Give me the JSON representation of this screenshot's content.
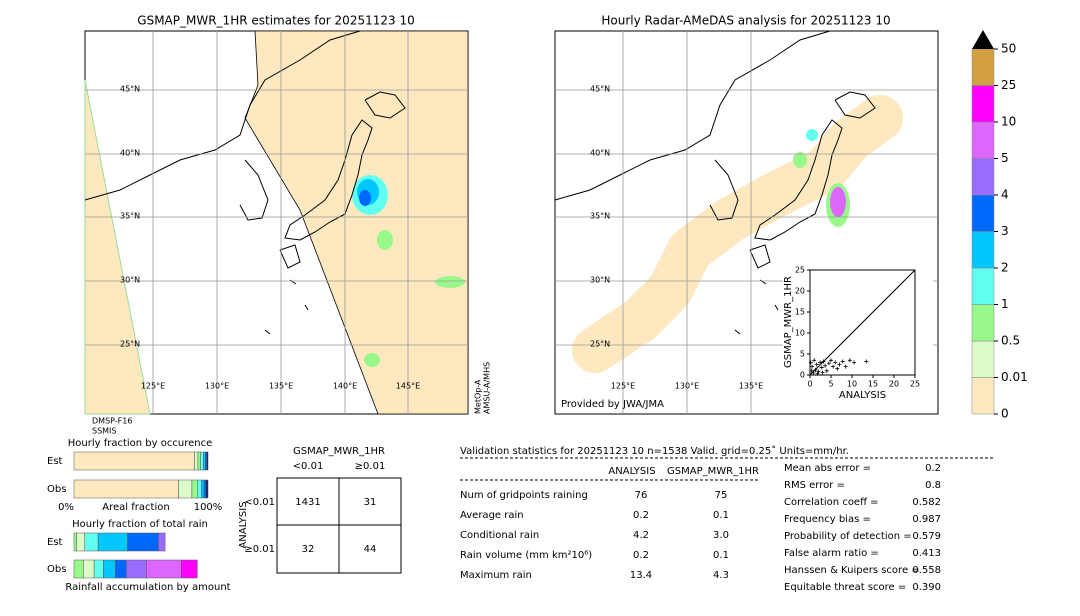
{
  "left_map": {
    "title": "GSMAP_MWR_1HR estimates for 20251123 10",
    "lat_labels": [
      "45°N",
      "40°N",
      "35°N",
      "30°N",
      "25°N"
    ],
    "lon_labels": [
      "125°E",
      "130°E",
      "135°E",
      "140°E",
      "145°E"
    ],
    "sensor_left": [
      "DMSP-F16",
      "SSMIS"
    ],
    "sensor_right": [
      "MetOp-A",
      "AMSU-A/MHS"
    ]
  },
  "right_map": {
    "title": "Hourly Radar-AMeDAS analysis for 20251123 10",
    "lat_labels": [
      "45°N",
      "40°N",
      "35°N",
      "30°N",
      "25°N"
    ],
    "lon_labels": [
      "125°E",
      "130°E",
      "135°E"
    ],
    "credit": "Provided by JWA/JMA"
  },
  "colorbar": {
    "levels": [
      0,
      0.01,
      0.5,
      1,
      2,
      3,
      4,
      5,
      10,
      25,
      50
    ],
    "colors": [
      "#fde8c0",
      "#dcfbc9",
      "#98f98a",
      "#60fff0",
      "#00c8ff",
      "#0068ff",
      "#9a6bff",
      "#dd66ff",
      "#ff00ff",
      "#d2a040"
    ],
    "extend_color": "#000000"
  },
  "scatter": {
    "type": "scatter",
    "xlabel": "ANALYSIS",
    "ylabel": "GSMAP_MWR_1HR",
    "xlim": [
      0,
      25
    ],
    "ylim": [
      0,
      25
    ],
    "xticks": [
      0,
      5,
      10,
      15,
      20,
      25
    ],
    "yticks": [
      0,
      5,
      10,
      15,
      20,
      25
    ],
    "x": [
      0.2,
      0.5,
      0.8,
      1.0,
      1.3,
      1.6,
      2.0,
      2.4,
      2.8,
      3.2,
      3.6,
      4.0,
      4.5,
      5.0,
      5.5,
      6.0,
      6.5,
      7.0,
      7.8,
      8.5,
      9.5,
      10.5,
      13.4,
      0.4,
      1.8,
      3.0
    ],
    "y": [
      3.0,
      2.0,
      0.5,
      3.5,
      1.2,
      2.5,
      0.8,
      3.0,
      1.8,
      3.2,
      2.2,
      1.0,
      2.8,
      3.5,
      2.0,
      3.0,
      1.5,
      2.5,
      3.2,
      2.0,
      3.5,
      3.0,
      3.2,
      1.0,
      0.3,
      0.6
    ],
    "color": "#000000"
  },
  "occurrence": {
    "title": "Hourly fraction by occurence",
    "rows": [
      "Est",
      "Obs"
    ],
    "xlabel": "Areal fraction",
    "xtick_labels": [
      "0%",
      "100%"
    ],
    "colors": [
      "#fde8c0",
      "#dcfbc9",
      "#98f98a",
      "#60fff0",
      "#00c8ff",
      "#0068ff",
      "#1a1a6e"
    ],
    "segments": [
      [
        0.9,
        0.025,
        0.02,
        0.02,
        0.015,
        0.01,
        0.01
      ],
      [
        0.78,
        0.1,
        0.04,
        0.03,
        0.02,
        0.015,
        0.015
      ]
    ]
  },
  "accumulation": {
    "title": "Hourly fraction of total rain",
    "rows": [
      "Est",
      "Obs"
    ],
    "xlabel": "Rainfall accumulation by amount",
    "colors": [
      "#98f98a",
      "#dcfbc9",
      "#60fff0",
      "#00c8ff",
      "#0068ff",
      "#9a6bff",
      "#dd66ff",
      "#ff00ff"
    ],
    "segments": [
      [
        0.02,
        0.06,
        0.1,
        0.22,
        0.23,
        0.05,
        0,
        0
      ],
      [
        0.07,
        0.08,
        0.07,
        0.09,
        0.08,
        0.15,
        0.26,
        0.12
      ]
    ]
  },
  "contingency": {
    "title": "GSMAP_MWR_1HR",
    "col_labels": [
      "<0.01",
      "≥0.01"
    ],
    "row_labels": [
      "<0.01",
      "≥0.01"
    ],
    "side_label": "ANALYSIS",
    "cells": [
      [
        "1431",
        "31"
      ],
      [
        "32",
        "44"
      ]
    ]
  },
  "validation": {
    "header": "Validation statistics for 20251123 10  n=1538 Valid. grid=0.25˚ Units=mm/hr.",
    "columns": [
      "ANALYSIS",
      "GSMAP_MWR_1HR"
    ],
    "rows": [
      {
        "label": "Num of gridpoints raining",
        "values": [
          "76",
          "75"
        ]
      },
      {
        "label": "Average rain",
        "values": [
          "0.2",
          "0.1"
        ]
      },
      {
        "label": "Conditional rain",
        "values": [
          "4.2",
          "3.0"
        ]
      },
      {
        "label": "Rain volume (mm km²10⁶)",
        "values": [
          "0.2",
          "0.1"
        ]
      },
      {
        "label": "Maximum rain",
        "values": [
          "13.4",
          "4.3"
        ]
      }
    ],
    "scores": [
      {
        "label": "Mean abs error =",
        "value": "0.2"
      },
      {
        "label": "RMS error =",
        "value": "0.8"
      },
      {
        "label": "Correlation coeff =",
        "value": "0.582"
      },
      {
        "label": "Frequency bias =",
        "value": "0.987"
      },
      {
        "label": "Probability of detection =",
        "value": "0.579"
      },
      {
        "label": "False alarm ratio =",
        "value": "0.413"
      },
      {
        "label": "Hanssen & Kuipers score =",
        "value": "0.558"
      },
      {
        "label": "Equitable threat score =",
        "value": "0.390"
      }
    ]
  }
}
